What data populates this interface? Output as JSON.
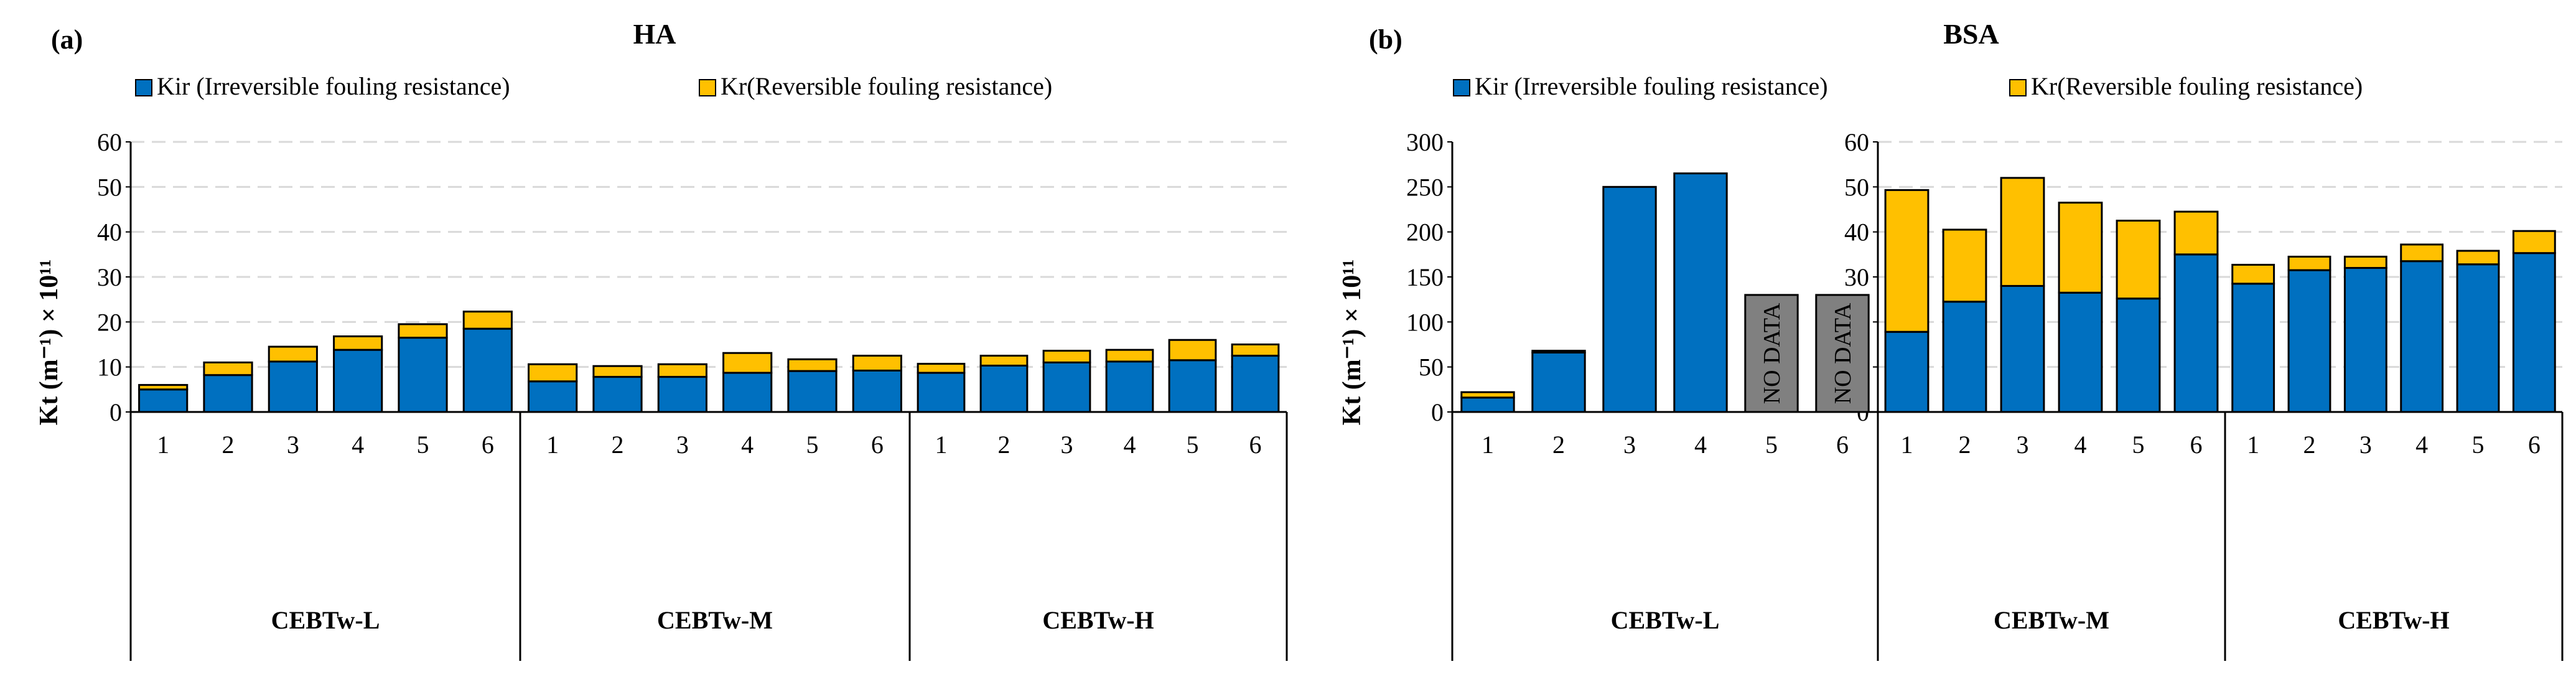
{
  "colors": {
    "kir": "#0070C0",
    "kr": "#FFC000",
    "nodata": "#808080",
    "grid": "#D9D9D9",
    "axis": "#000000"
  },
  "chart_data": [
    {
      "panel": "(a)",
      "type": "bar",
      "stacked": true,
      "title": "HA",
      "ylabel": "Kt (m⁻¹) × 10¹¹",
      "ylim": [
        0,
        60
      ],
      "yticks": [
        0,
        10,
        20,
        30,
        40,
        50,
        60
      ],
      "legend": [
        "Kir (Irreversible fouling resistance)",
        "Kr(Reversible fouling resistance)"
      ],
      "groups": [
        {
          "label": "CEBTw-L",
          "categories": [
            "1",
            "2",
            "3",
            "4",
            "5",
            "6"
          ],
          "series": [
            {
              "name": "Kir",
              "values": [
                5.0,
                8.2,
                11.2,
                13.8,
                16.5,
                18.5
              ]
            },
            {
              "name": "Kr",
              "values": [
                1.0,
                2.8,
                3.3,
                3.0,
                3.0,
                3.8
              ]
            }
          ]
        },
        {
          "label": "CEBTw-M",
          "categories": [
            "1",
            "2",
            "3",
            "4",
            "5",
            "6"
          ],
          "series": [
            {
              "name": "Kir",
              "values": [
                6.8,
                7.8,
                7.8,
                8.7,
                9.1,
                9.2
              ]
            },
            {
              "name": "Kr",
              "values": [
                3.8,
                2.4,
                2.8,
                4.4,
                2.6,
                3.3
              ]
            }
          ]
        },
        {
          "label": "CEBTw-H",
          "categories": [
            "1",
            "2",
            "3",
            "4",
            "5",
            "6"
          ],
          "series": [
            {
              "name": "Kir",
              "values": [
                8.7,
                10.3,
                11.0,
                11.2,
                11.5,
                12.5
              ]
            },
            {
              "name": "Kr",
              "values": [
                2.0,
                2.2,
                2.6,
                2.6,
                4.5,
                2.5
              ]
            }
          ]
        }
      ]
    },
    {
      "panel": "(b)",
      "type": "bar",
      "stacked": true,
      "title": "BSA",
      "ylabel": "Kt (m⁻¹) × 10¹¹",
      "legend": [
        "Kir (Irreversible fouling resistance)",
        "Kr(Reversible fouling resistance)"
      ],
      "left_axis": {
        "ylim": [
          0,
          300
        ],
        "yticks": [
          0,
          50,
          100,
          150,
          200,
          250,
          300
        ],
        "applies_to": "CEBTw-L"
      },
      "right_axis": {
        "ylim": [
          0,
          60
        ],
        "yticks": [
          0,
          10,
          20,
          30,
          40,
          50,
          60
        ],
        "applies_to": "CEBTw-M, CEBTw-H"
      },
      "no_data_label": "NO DATA",
      "groups": [
        {
          "label": "CEBTw-L",
          "categories": [
            "1",
            "2",
            "3",
            "4",
            "5",
            "6"
          ],
          "series": [
            {
              "name": "Kir",
              "values": [
                16,
                66,
                250,
                265,
                null,
                null
              ]
            },
            {
              "name": "Kr",
              "values": [
                6,
                2,
                0,
                0,
                null,
                null
              ]
            }
          ],
          "no_data": [
            false,
            false,
            false,
            false,
            true,
            true
          ]
        },
        {
          "label": "CEBTw-M",
          "categories": [
            "1",
            "2",
            "3",
            "4",
            "5",
            "6"
          ],
          "series": [
            {
              "name": "Kir",
              "values": [
                17.8,
                24.5,
                28.0,
                26.5,
                25.2,
                35.0
              ]
            },
            {
              "name": "Kr",
              "values": [
                31.5,
                16.0,
                24.0,
                20.0,
                17.3,
                9.5
              ]
            }
          ]
        },
        {
          "label": "CEBTw-H",
          "categories": [
            "1",
            "2",
            "3",
            "4",
            "5",
            "6"
          ],
          "series": [
            {
              "name": "Kir",
              "values": [
                28.5,
                31.5,
                32.0,
                33.5,
                32.8,
                35.3
              ]
            },
            {
              "name": "Kr",
              "values": [
                4.2,
                3.0,
                2.5,
                3.7,
                3.0,
                4.9
              ]
            }
          ]
        }
      ]
    }
  ]
}
